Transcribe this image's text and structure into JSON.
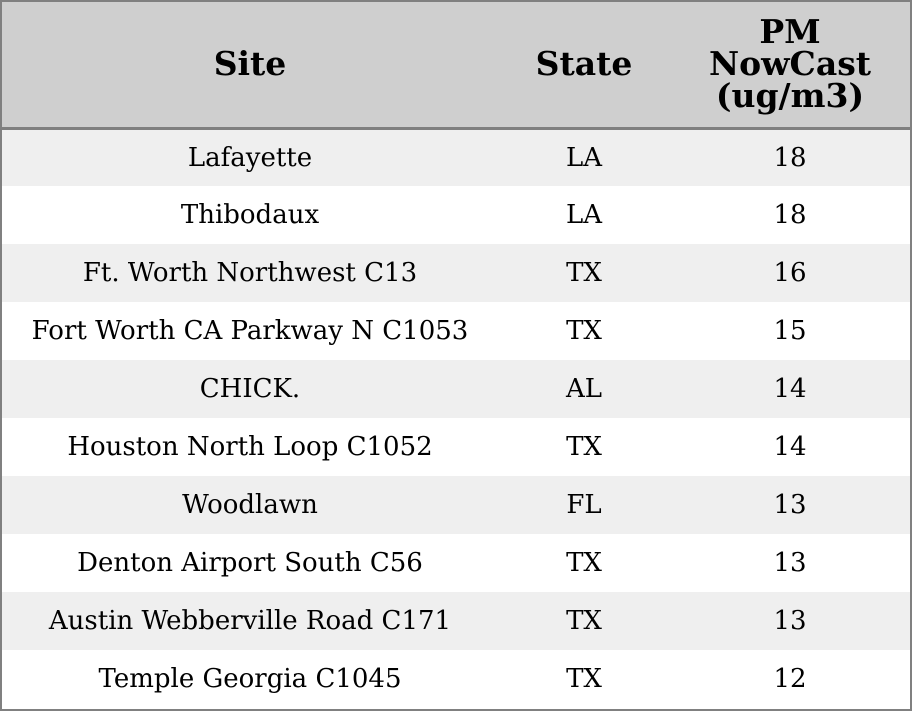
{
  "chart_data": {
    "type": "table",
    "columns": [
      "Site",
      "State",
      "PM NowCast (ug/m3)"
    ],
    "header_lines": {
      "site": [
        "Site"
      ],
      "state": [
        "State"
      ],
      "pm": [
        "PM",
        "NowCast",
        "(ug/m3)"
      ]
    },
    "rows": [
      {
        "site": "Lafayette",
        "state": "LA",
        "pm": "18"
      },
      {
        "site": "Thibodaux",
        "state": "LA",
        "pm": "18"
      },
      {
        "site": "Ft. Worth Northwest C13",
        "state": "TX",
        "pm": "16"
      },
      {
        "site": "Fort Worth CA Parkway N C1053",
        "state": "TX",
        "pm": "15"
      },
      {
        "site": "CHICK.",
        "state": "AL",
        "pm": "14"
      },
      {
        "site": "Houston North Loop C1052",
        "state": "TX",
        "pm": "14"
      },
      {
        "site": "Woodlawn",
        "state": "FL",
        "pm": "13"
      },
      {
        "site": "Denton Airport South C56",
        "state": "TX",
        "pm": "13"
      },
      {
        "site": "Austin Webberville Road C171",
        "state": "TX",
        "pm": "13"
      },
      {
        "site": "Temple Georgia C1045",
        "state": "TX",
        "pm": "12"
      }
    ]
  },
  "colors": {
    "header_bg": "#cfcfcf",
    "stripe_bg": "#efefef",
    "row_bg": "#ffffff",
    "border": "#808080",
    "text": "#000000"
  }
}
